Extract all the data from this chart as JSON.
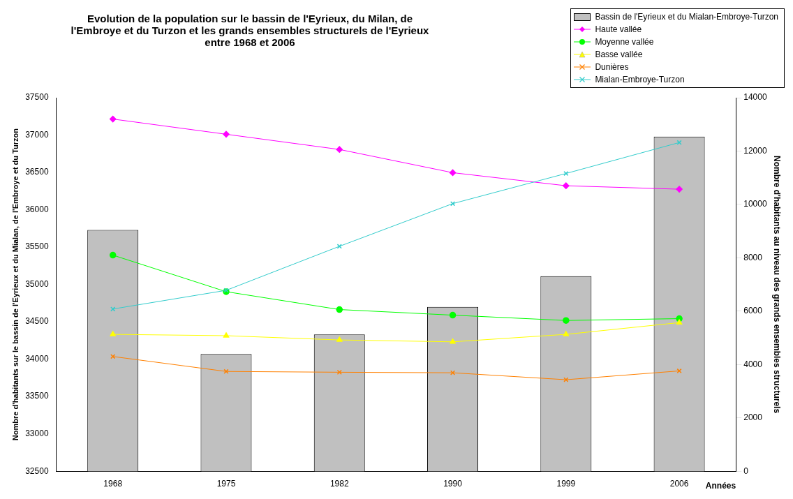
{
  "chart_data": {
    "type": "line",
    "title": "Evolution de la population sur le bassin de l'Eyrieux, du Milan, de l'Embroye et du Turzon et les grands ensembles structurels de l'Eyrieux entre 1968 et 2006",
    "xlabel": "Années",
    "ylabel": "Nombre d'habitants sur le bassin de l'Eyrieux et du Mialan, de l'Embroye et du Turzon",
    "y2label": "Nombre d'habitants au niveau des grands ensembles structurels",
    "categories": [
      "1968",
      "1975",
      "1982",
      "1990",
      "1999",
      "2006"
    ],
    "series": [
      {
        "name": "Bassin de l'Eyrieux et du Mialan-Embroye-Turzon",
        "type": "bar",
        "color": "#c0c0c0",
        "values": [
          35730,
          34070,
          34330,
          34700,
          35110,
          36980
        ]
      },
      {
        "name": "Haute vallée",
        "color": "#ff00ff",
        "marker": "diamond",
        "axis": "y2",
        "values": [
          13200,
          12630,
          12060,
          11190,
          10700,
          10570
        ]
      },
      {
        "name": "Moyenne vallée",
        "color": "#00ff00",
        "marker": "circle",
        "axis": "y2",
        "values": [
          8100,
          6730,
          6060,
          5850,
          5650,
          5720
        ]
      },
      {
        "name": "Basse vallée",
        "color": "#ffff00",
        "marker": "triangle",
        "axis": "y2",
        "values": [
          5130,
          5080,
          4920,
          4850,
          5130,
          5570
        ]
      },
      {
        "name": "Dunières",
        "color": "#ff8000",
        "marker": "cross",
        "axis": "y2",
        "values": [
          4300,
          3740,
          3710,
          3690,
          3430,
          3760
        ]
      },
      {
        "name": "Mialan-Embroye-Turzon",
        "color": "#33cccc",
        "marker": "cross",
        "axis": "y2",
        "values": [
          6080,
          6780,
          8430,
          10030,
          11160,
          12320
        ]
      }
    ],
    "ylim": [
      32500,
      37500
    ],
    "yticks": [
      32500,
      33000,
      33500,
      34000,
      34500,
      35000,
      35500,
      36000,
      36500,
      37000,
      37500
    ],
    "y2lim": [
      0,
      14000
    ],
    "y2ticks": [
      0,
      2000,
      4000,
      6000,
      8000,
      10000,
      12000,
      14000
    ],
    "grid": false,
    "legend": "top right"
  }
}
